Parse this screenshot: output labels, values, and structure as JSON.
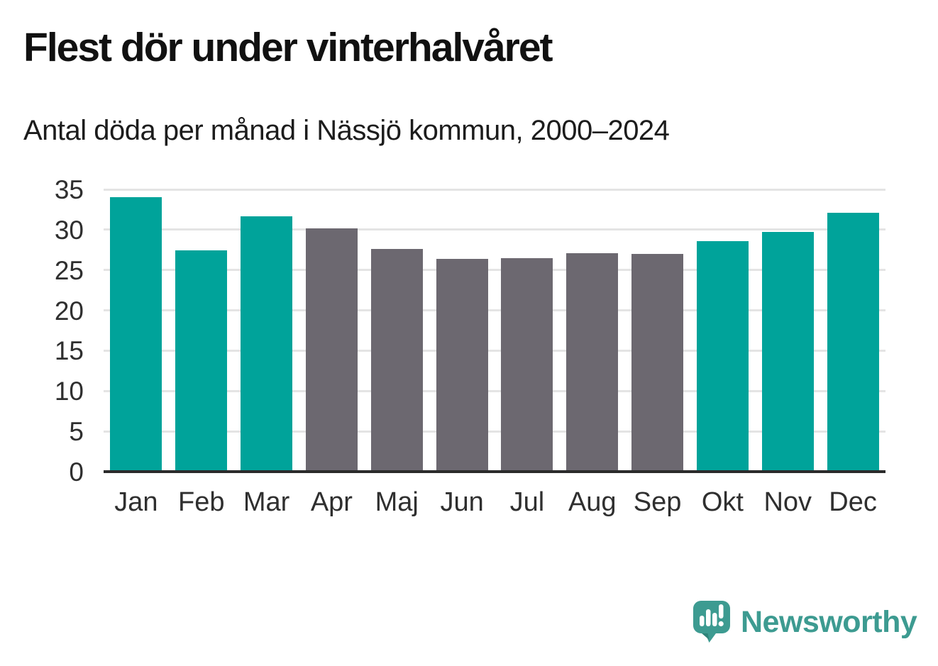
{
  "header": {
    "title": "Flest dör under vinterhalvåret",
    "subtitle": "Antal döda per månad i Nässjö kommun, 2000–2024"
  },
  "chart_data": {
    "type": "bar",
    "title": "Flest dör under vinterhalvåret",
    "subtitle": "Antal döda per månad i Nässjö kommun, 2000–2024",
    "categories": [
      "Jan",
      "Feb",
      "Mar",
      "Apr",
      "Maj",
      "Jun",
      "Jul",
      "Aug",
      "Sep",
      "Okt",
      "Nov",
      "Dec"
    ],
    "values": [
      34.0,
      27.4,
      31.7,
      30.2,
      27.6,
      26.4,
      26.5,
      27.1,
      27.0,
      28.6,
      29.7,
      32.1
    ],
    "bar_colors": [
      "#00a39a",
      "#00a39a",
      "#00a39a",
      "#6c6870",
      "#6c6870",
      "#6c6870",
      "#6c6870",
      "#6c6870",
      "#6c6870",
      "#00a39a",
      "#00a39a",
      "#00a39a"
    ],
    "color_meaning": {
      "teal_winter_months": [
        "Jan",
        "Feb",
        "Mar",
        "Okt",
        "Nov",
        "Dec"
      ],
      "gray_summer_months": [
        "Apr",
        "Maj",
        "Jun",
        "Jul",
        "Aug",
        "Sep"
      ]
    },
    "xlabel": "",
    "ylabel": "",
    "yticks": [
      0,
      5,
      10,
      15,
      20,
      25,
      30,
      35
    ],
    "ylim": [
      0,
      35
    ],
    "grid": true,
    "legend_position": "none"
  },
  "colors": {
    "winter_bar": "#00a39a",
    "summer_bar": "#6c6870",
    "gridline": "#e4e4e4",
    "axis_line": "#2b2b2b",
    "brand_teal": "#3d9b91"
  },
  "branding": {
    "name": "Newsworthy",
    "icon": "newsworthy-speech-bubble-chart-icon"
  }
}
